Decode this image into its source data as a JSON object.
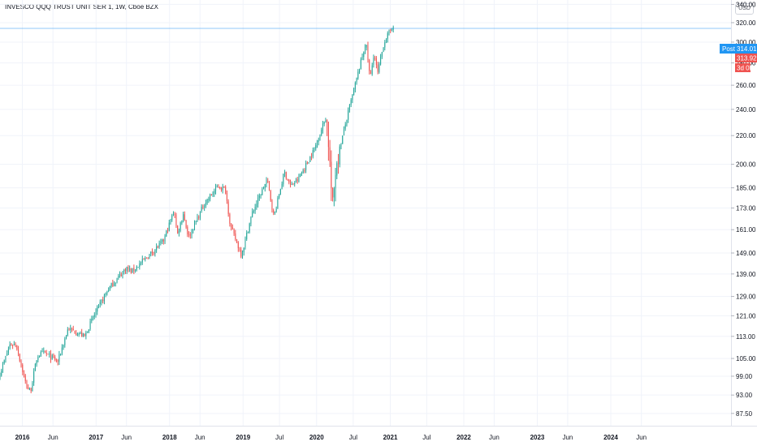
{
  "header": {
    "symbol_title": "INVESCO QQQ TRUST UNIT SER 1, 1W, Cboe BZX",
    "currency": "USD"
  },
  "price_tags": {
    "post_label": "Post",
    "post_price": "314.01",
    "last_price": "313.92",
    "countdown": "3d 0h"
  },
  "colors": {
    "up": "#26a69a",
    "down": "#ef5350",
    "post": "#2196f3",
    "grid": "#f0f3fa",
    "axis_line": "#e0e3eb"
  },
  "chart_data": {
    "type": "candlestick",
    "title": "INVESCO QQQ TRUST UNIT SER 1, 1W, Cboe BZX",
    "interval": "1W",
    "y_scale": "log",
    "ylim": [
      84,
      345
    ],
    "xlim": [
      "2015-09-12",
      "2025-08-20"
    ],
    "y_ticks": [
      "340.00",
      "320.00",
      "300.00",
      "280.00",
      "260.00",
      "240.00",
      "220.00",
      "200.00",
      "185.00",
      "173.00",
      "161.00",
      "149.00",
      "139.00",
      "129.00",
      "121.00",
      "113.00",
      "105.00",
      "99.00",
      "93.00",
      "87.50"
    ],
    "x_ticks": [
      {
        "label": "2016",
        "date": "2016-01-01",
        "year": true
      },
      {
        "label": "Jun",
        "date": "2016-06-01",
        "year": false
      },
      {
        "label": "2017",
        "date": "2017-01-01",
        "year": true
      },
      {
        "label": "Jun",
        "date": "2017-06-01",
        "year": false
      },
      {
        "label": "2018",
        "date": "2018-01-01",
        "year": true
      },
      {
        "label": "Jun",
        "date": "2018-06-01",
        "year": false
      },
      {
        "label": "2019",
        "date": "2019-01-01",
        "year": true
      },
      {
        "label": "Jul",
        "date": "2019-07-01",
        "year": false
      },
      {
        "label": "2020",
        "date": "2020-01-01",
        "year": true
      },
      {
        "label": "Jul",
        "date": "2020-07-01",
        "year": false
      },
      {
        "label": "2021",
        "date": "2021-01-01",
        "year": true
      },
      {
        "label": "Jul",
        "date": "2021-07-01",
        "year": false
      },
      {
        "label": "2022",
        "date": "2022-01-01",
        "year": true
      },
      {
        "label": "Jun",
        "date": "2022-06-01",
        "year": false
      },
      {
        "label": "2023",
        "date": "2023-01-01",
        "year": true
      },
      {
        "label": "Jun",
        "date": "2023-06-01",
        "year": false
      },
      {
        "label": "2024",
        "date": "2024-01-01",
        "year": true
      },
      {
        "label": "Jun",
        "date": "2024-06-01",
        "year": false
      }
    ],
    "price_line": 314.01,
    "start_date": "2015-09-12",
    "path_anchors": [
      [
        "2015-09-12",
        100
      ],
      [
        "2015-11-01",
        110
      ],
      [
        "2015-12-01",
        110
      ],
      [
        "2016-01-20",
        96
      ],
      [
        "2016-02-10",
        94
      ],
      [
        "2016-03-15",
        106
      ],
      [
        "2016-04-20",
        107
      ],
      [
        "2016-06-25",
        104
      ],
      [
        "2016-08-15",
        116
      ],
      [
        "2016-11-05",
        113
      ],
      [
        "2016-12-15",
        120
      ],
      [
        "2017-03-01",
        132
      ],
      [
        "2017-06-01",
        142
      ],
      [
        "2017-06-25",
        140
      ],
      [
        "2017-09-01",
        146
      ],
      [
        "2017-12-01",
        155
      ],
      [
        "2018-01-25",
        172
      ],
      [
        "2018-02-08",
        158
      ],
      [
        "2018-03-10",
        170
      ],
      [
        "2018-04-05",
        157
      ],
      [
        "2018-06-20",
        175
      ],
      [
        "2018-08-30",
        186
      ],
      [
        "2018-10-05",
        184
      ],
      [
        "2018-10-30",
        163
      ],
      [
        "2018-12-24",
        148
      ],
      [
        "2019-02-15",
        170
      ],
      [
        "2019-04-30",
        190
      ],
      [
        "2019-06-03",
        168
      ],
      [
        "2019-07-25",
        195
      ],
      [
        "2019-08-25",
        186
      ],
      [
        "2019-10-01",
        190
      ],
      [
        "2019-12-20",
        210
      ],
      [
        "2020-02-19",
        235
      ],
      [
        "2020-03-02",
        212
      ],
      [
        "2020-03-20",
        172
      ],
      [
        "2020-04-06",
        200
      ],
      [
        "2020-06-10",
        240
      ],
      [
        "2020-09-02",
        300
      ],
      [
        "2020-09-23",
        265
      ],
      [
        "2020-10-12",
        290
      ],
      [
        "2020-10-30",
        270
      ],
      [
        "2020-12-01",
        300
      ],
      [
        "2021-01-22",
        320
      ]
    ]
  }
}
